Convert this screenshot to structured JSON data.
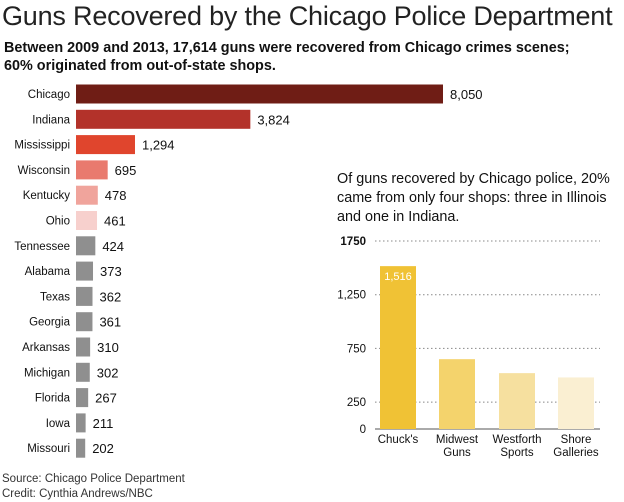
{
  "header": {
    "title": "Guns Recovered by the Chicago Police Department",
    "subtitle": "Between 2009 and 2013, 17,614 guns were recovered from Chicago crimes scenes; 60% originated from out-of-state shops."
  },
  "right_panel": {
    "text": "Of guns recovered by Chicago police, 20% came from only four shops: three in Illinois and one in Indiana."
  },
  "footer": {
    "source": "Source: Chicago Police Department",
    "credit": "Credit: Cynthia Andrews/NBC"
  },
  "chart_data": [
    {
      "type": "bar",
      "orientation": "horizontal",
      "title": "",
      "categories": [
        "Chicago",
        "Indiana",
        "Mississippi",
        "Wisconsin",
        "Kentucky",
        "Ohio",
        "Tennessee",
        "Alabama",
        "Texas",
        "Georgia",
        "Arkansas",
        "Michigan",
        "Florida",
        "Iowa",
        "Missouri"
      ],
      "values": [
        8050,
        3824,
        1294,
        695,
        478,
        461,
        424,
        373,
        362,
        361,
        310,
        302,
        267,
        211,
        202
      ],
      "value_labels": [
        "8,050",
        "3,824",
        "1,294",
        "695",
        "478",
        "461",
        "424",
        "373",
        "362",
        "361",
        "310",
        "302",
        "267",
        "211",
        "202"
      ],
      "colors": [
        "#6f1d15",
        "#b3322a",
        "#e0452d",
        "#e97a6e",
        "#f0a49c",
        "#f7d0cd",
        "#8f8f8f",
        "#8f8f8f",
        "#8f8f8f",
        "#8f8f8f",
        "#8f8f8f",
        "#8f8f8f",
        "#8f8f8f",
        "#8f8f8f",
        "#8f8f8f"
      ],
      "grid": false
    },
    {
      "type": "bar",
      "orientation": "vertical",
      "title": "",
      "categories": [
        [
          "Chuck's"
        ],
        [
          "Midwest",
          "Guns"
        ],
        [
          "Westforth",
          "Sports"
        ],
        [
          "Shore",
          "Galleries"
        ]
      ],
      "values": [
        1516,
        650,
        520,
        480
      ],
      "data_labels": [
        "1,516",
        "",
        "",
        ""
      ],
      "colors": [
        "#f0c235",
        "#f4d36c",
        "#f6e09f",
        "#faefd2"
      ],
      "ylim": [
        0,
        1750
      ],
      "ytick_labels": [
        {
          "value": 1750,
          "label": "1750"
        },
        {
          "value": 1250,
          "label": "1,250"
        },
        {
          "value": 750,
          "label": "750"
        },
        {
          "value": 250,
          "label": "250"
        },
        {
          "value": 0,
          "label": "0"
        }
      ],
      "grid": true
    }
  ]
}
